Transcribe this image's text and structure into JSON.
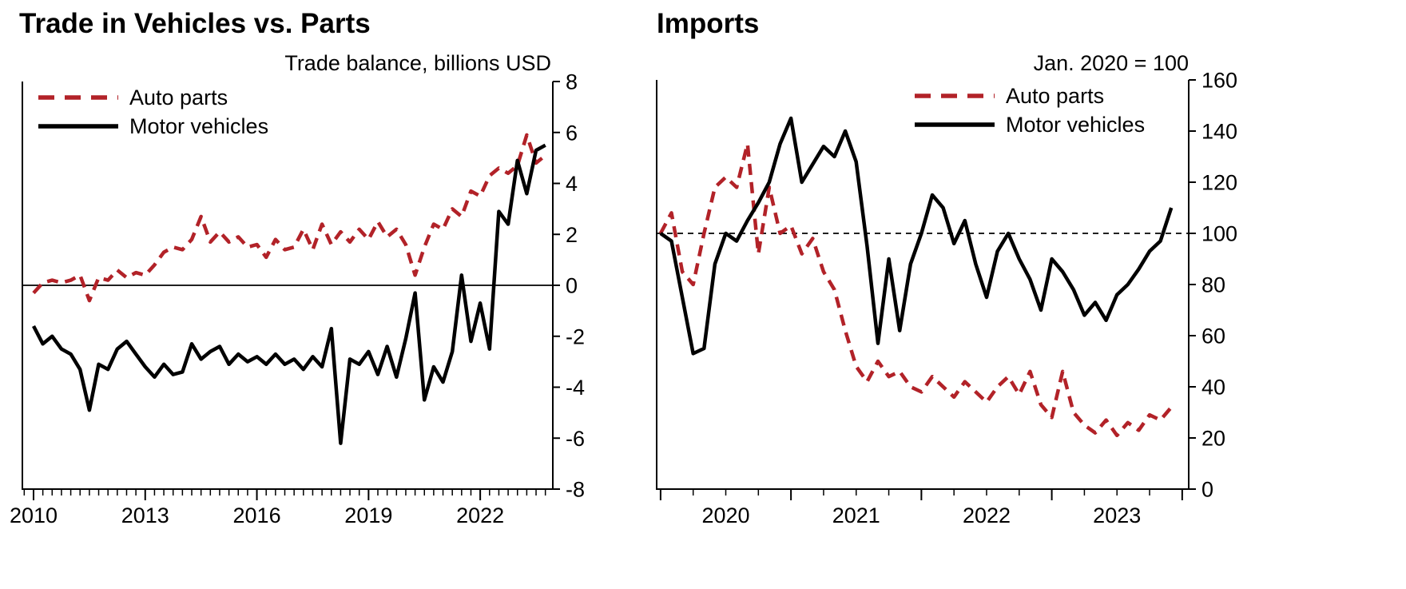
{
  "colors": {
    "auto_parts": "#b22228",
    "motor_vehicles": "#000000",
    "axis": "#000000"
  },
  "chart_data": [
    {
      "type": "line",
      "title": "Trade in Vehicles vs. Parts",
      "subtitle": "Trade balance, billions USD",
      "legend_position": "top-left",
      "legend": [
        {
          "label": "Auto parts",
          "color": "#b22228",
          "dash": "dashed"
        },
        {
          "label": "Motor vehicles",
          "color": "#000000",
          "dash": "solid"
        }
      ],
      "x": {
        "start": 2010.0,
        "step": 0.25,
        "unit": "decimal-year",
        "frequency": "quarterly"
      },
      "xlim": [
        2009.7,
        2023.95
      ],
      "ylim": [
        -8,
        8
      ],
      "ytick_values": [
        8,
        6,
        4,
        2,
        0,
        -2,
        -4,
        -6,
        -8
      ],
      "ytick_labels": [
        "8",
        "6",
        "4",
        "2",
        "0",
        "-2",
        "-4",
        "-6",
        "-8"
      ],
      "xticks": {
        "label_values": [
          "2010",
          "2013",
          "2016",
          "2019",
          "2022"
        ],
        "label_positions": [
          2010,
          2013,
          2016,
          2019,
          2022
        ],
        "major_positions": [
          2010,
          2013,
          2016,
          2019,
          2022
        ],
        "minor_step": 0.25
      },
      "refline": {
        "y": 0,
        "style": "solid"
      },
      "grid": false,
      "series": [
        {
          "name": "Auto parts",
          "color": "#b22228",
          "dash": "dashed",
          "values": [
            -0.3,
            0.1,
            0.2,
            0.1,
            0.2,
            0.4,
            -0.6,
            0.3,
            0.2,
            0.6,
            0.3,
            0.5,
            0.4,
            0.8,
            1.3,
            1.5,
            1.4,
            1.8,
            2.7,
            1.7,
            2.1,
            1.7,
            1.9,
            1.5,
            1.6,
            1.1,
            1.8,
            1.4,
            1.5,
            2.2,
            1.4,
            2.4,
            1.6,
            2.1,
            1.7,
            2.2,
            1.8,
            2.5,
            1.9,
            2.2,
            1.6,
            0.4,
            1.5,
            2.4,
            2.2,
            3.0,
            2.7,
            3.7,
            3.5,
            4.3,
            4.6,
            4.4,
            4.7,
            5.9,
            4.8,
            5.1
          ]
        },
        {
          "name": "Motor vehicles",
          "color": "#000000",
          "dash": "solid",
          "values": [
            -1.6,
            -2.3,
            -2.0,
            -2.5,
            -2.7,
            -3.3,
            -4.9,
            -3.1,
            -3.3,
            -2.5,
            -2.2,
            -2.7,
            -3.2,
            -3.6,
            -3.1,
            -3.5,
            -3.4,
            -2.3,
            -2.9,
            -2.6,
            -2.4,
            -3.1,
            -2.7,
            -3.0,
            -2.8,
            -3.1,
            -2.7,
            -3.1,
            -2.9,
            -3.3,
            -2.8,
            -3.2,
            -1.7,
            -6.2,
            -2.9,
            -3.1,
            -2.6,
            -3.5,
            -2.4,
            -3.6,
            -2.1,
            -0.3,
            -4.5,
            -3.2,
            -3.8,
            -2.6,
            0.4,
            -2.2,
            -0.7,
            -2.5,
            2.9,
            2.4,
            4.9,
            3.6,
            5.3,
            5.5
          ]
        }
      ]
    },
    {
      "type": "line",
      "title": "Imports",
      "subtitle": "Jan. 2020 = 100",
      "legend_position": "top-right",
      "legend": [
        {
          "label": "Auto parts",
          "color": "#b22228",
          "dash": "dashed"
        },
        {
          "label": "Motor vehicles",
          "color": "#000000",
          "dash": "solid"
        }
      ],
      "x": {
        "start": 2020.0,
        "step": 0.0833333,
        "unit": "decimal-year",
        "frequency": "monthly"
      },
      "xlim": [
        2019.97,
        2024.05
      ],
      "ylim": [
        0,
        160
      ],
      "ytick_values": [
        160,
        140,
        120,
        100,
        80,
        60,
        40,
        20,
        0
      ],
      "ytick_labels": [
        "160",
        "140",
        "120",
        "100",
        "80",
        "60",
        "40",
        "20",
        "0"
      ],
      "xticks": {
        "label_values": [
          "2020",
          "2021",
          "2022",
          "2023"
        ],
        "label_positions": [
          2020.5,
          2021.5,
          2022.5,
          2023.5
        ],
        "major_positions": [
          2020,
          2021,
          2022,
          2023,
          2024
        ],
        "minor_step": 0.25
      },
      "refline": {
        "y": 100,
        "style": "dashed"
      },
      "grid": false,
      "series": [
        {
          "name": "Auto parts",
          "color": "#b22228",
          "dash": "dashed",
          "values": [
            100,
            108,
            85,
            80,
            100,
            118,
            122,
            118,
            135,
            92,
            118,
            100,
            103,
            92,
            98,
            85,
            78,
            62,
            48,
            42,
            50,
            44,
            46,
            40,
            38,
            44,
            40,
            36,
            42,
            38,
            34,
            40,
            44,
            37,
            46,
            33,
            28,
            46,
            30,
            25,
            22,
            27,
            21,
            26,
            23,
            29,
            27,
            32
          ]
        },
        {
          "name": "Motor vehicles",
          "color": "#000000",
          "dash": "solid",
          "values": [
            100,
            97,
            75,
            53,
            55,
            88,
            100,
            97,
            105,
            112,
            120,
            135,
            145,
            120,
            127,
            134,
            130,
            140,
            128,
            95,
            57,
            90,
            62,
            88,
            100,
            115,
            110,
            96,
            105,
            88,
            75,
            93,
            100,
            90,
            82,
            70,
            90,
            85,
            78,
            68,
            73,
            66,
            76,
            80,
            86,
            93,
            97,
            110
          ]
        }
      ]
    }
  ]
}
